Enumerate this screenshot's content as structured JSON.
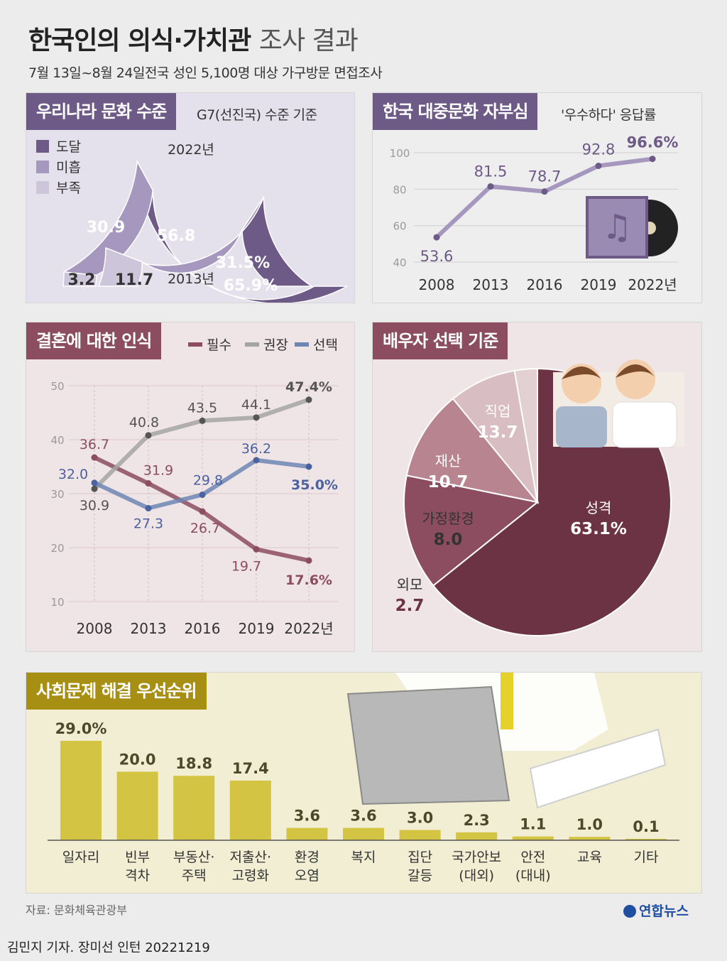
{
  "header": {
    "title_bold": "한국인의 의식·가치관",
    "title_light": "조사 결과",
    "subtitle": "7월 13일~8월 24일전국 성인 5,100명 대상 가구방문 면접조사"
  },
  "colors": {
    "purple_dark": "#6e5a87",
    "purple_mid": "#a597bd",
    "purple_light": "#cdc5da",
    "purple_panel": "#e5e1ec",
    "wine_dark": "#6b3344",
    "wine_mid": "#8b4d5f",
    "wine_light": "#b7848f",
    "wine_pale": "#d8bdc2",
    "wine_panel": "#efe4e6",
    "line_gray": "#a4a4a4",
    "line_blue": "#6d86b3",
    "olive_title": "#a68f12",
    "olive_bar": "#d4c444",
    "olive_panel": "#f1eed3"
  },
  "panel1": {
    "title": "우리나라 문화 수준",
    "note": "G7(선진국) 수준 기준",
    "legend": [
      "도달",
      "미흡",
      "부족"
    ],
    "outer_label": "2022년",
    "inner_label": "2013년",
    "chart_data": {
      "type": "pie",
      "series": [
        {
          "name": "2022년",
          "values": [
            65.9,
            30.9,
            3.2
          ],
          "labels": [
            "65.9%",
            "30.9",
            "3.2"
          ]
        },
        {
          "name": "2013년",
          "values": [
            31.5,
            56.8,
            11.7
          ],
          "labels": [
            "31.5%",
            "56.8",
            "11.7"
          ]
        }
      ],
      "categories": [
        "도달",
        "미흡",
        "부족"
      ]
    }
  },
  "panel2": {
    "title": "한국 대중문화 자부심",
    "note": "'우수하다' 응답률",
    "chart_data": {
      "type": "line",
      "x": [
        "2008",
        "2013",
        "2016",
        "2019",
        "2022년"
      ],
      "values": [
        53.6,
        81.5,
        78.7,
        92.8,
        96.6
      ],
      "labels": [
        "53.6",
        "81.5",
        "78.7",
        "92.8",
        "96.6%"
      ],
      "yticks": [
        "40",
        "60",
        "80",
        "100"
      ],
      "ylim": [
        40,
        100
      ]
    }
  },
  "panel3": {
    "title": "결혼에 대한 인식",
    "chart_data": {
      "type": "line",
      "x": [
        "2008",
        "2013",
        "2016",
        "2019",
        "2022년"
      ],
      "yticks": [
        "10",
        "20",
        "30",
        "40",
        "50"
      ],
      "ylim": [
        10,
        50
      ],
      "series": [
        {
          "name": "필수",
          "values": [
            36.7,
            31.9,
            26.7,
            19.7,
            17.6
          ],
          "labels": [
            "36.7",
            "31.9",
            "26.7",
            "19.7",
            "17.6%"
          ]
        },
        {
          "name": "권장",
          "values": [
            30.9,
            40.8,
            43.5,
            44.1,
            47.4
          ],
          "labels": [
            "30.9",
            "40.8",
            "43.5",
            "44.1",
            "47.4%"
          ]
        },
        {
          "name": "선택",
          "values": [
            32.0,
            27.3,
            29.8,
            36.2,
            35.0
          ],
          "labels": [
            "32.0",
            "27.3",
            "29.8",
            "36.2",
            "35.0%"
          ]
        }
      ]
    }
  },
  "panel4": {
    "title": "배우자 선택 기준",
    "chart_data": {
      "type": "pie",
      "categories": [
        "성격",
        "직업",
        "재산",
        "가정환경",
        "외모"
      ],
      "values": [
        63.1,
        13.7,
        10.7,
        8.0,
        2.7
      ],
      "labels": [
        "63.1%",
        "13.7",
        "10.7",
        "8.0",
        "2.7"
      ]
    }
  },
  "panel5": {
    "title": "사회문제 해결 우선순위",
    "chart_data": {
      "type": "bar",
      "categories": [
        "일자리",
        "빈부\n격차",
        "부동산·\n주택",
        "저출산·\n고령화",
        "환경\n오염",
        "복지",
        "집단\n갈등",
        "국가안보\n(대외)",
        "안전\n(대내)",
        "교육",
        "기타"
      ],
      "values": [
        29.0,
        20.0,
        18.8,
        17.4,
        3.6,
        3.6,
        3.0,
        2.3,
        1.1,
        1.0,
        0.1
      ],
      "labels": [
        "29.0%",
        "20.0",
        "18.8",
        "17.4",
        "3.6",
        "3.6",
        "3.0",
        "2.3",
        "1.1",
        "1.0",
        "0.1"
      ]
    }
  },
  "footer": {
    "source": "자료: 문화체육관광부",
    "logo": "연합뉴스",
    "byline": "김민지 기자. 장미선 인턴  20221219"
  }
}
